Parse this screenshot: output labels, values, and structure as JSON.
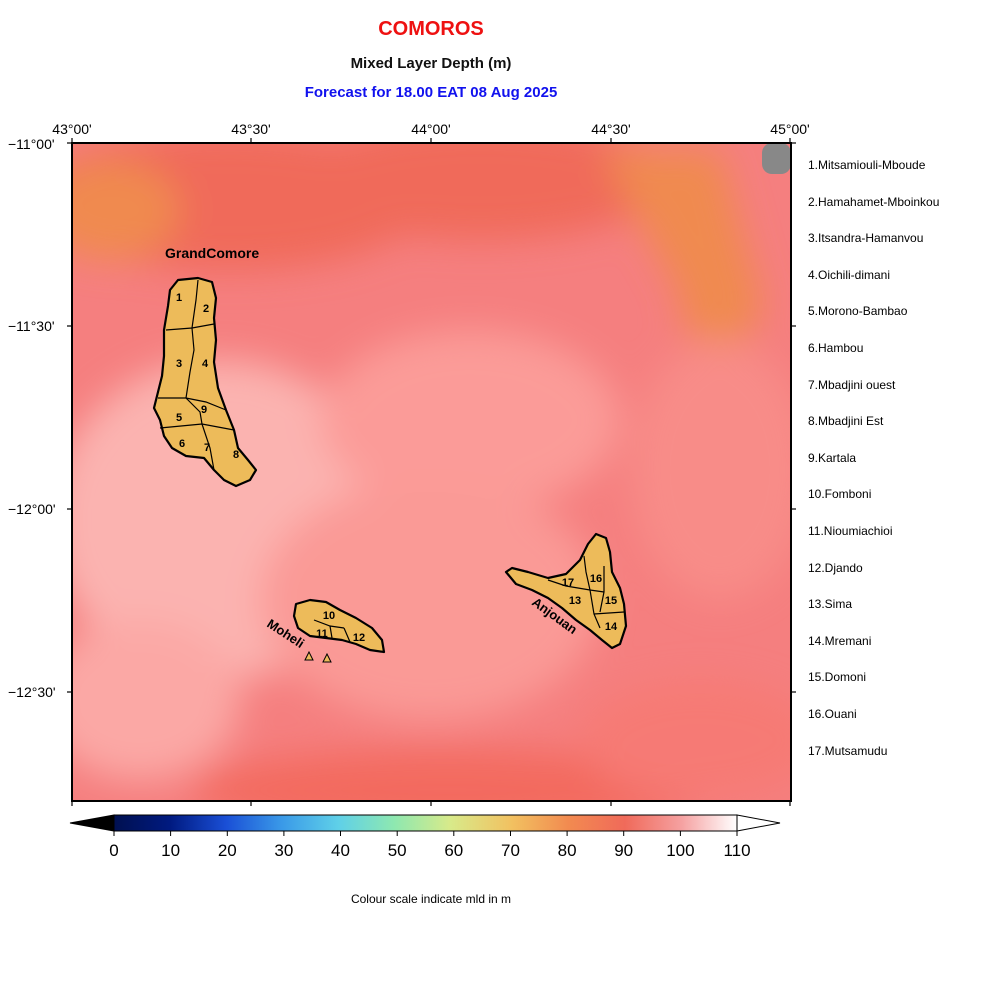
{
  "header": {
    "country": "COMOROS",
    "variable": "Mixed Layer Depth (m)",
    "forecast": "Forecast for  18.00 EAT 08 Aug 2025"
  },
  "axes": {
    "lon_labels": [
      "43°00'",
      "43°30'",
      "44°00'",
      "44°30'",
      "45°00'"
    ],
    "lat_labels": [
      "−11°00'",
      "−11°30'",
      "−12°00'",
      "−12°30'"
    ]
  },
  "islands": {
    "grand_comore": "GrandComore",
    "moheli": "Moheli",
    "anjouan": "Anjouan"
  },
  "region_numbers": [
    "1",
    "2",
    "3",
    "4",
    "5",
    "6",
    "7",
    "8",
    "9",
    "10",
    "11",
    "12",
    "13",
    "14",
    "15",
    "16",
    "17"
  ],
  "regions": [
    "1.Mitsamiouli-Mboude",
    "2.Hamahamet-Mboinkou",
    "3.Itsandra-Hamanvou",
    "4.Oichili-dimani",
    "5.Morono-Bambao",
    "6.Hambou",
    "7.Mbadjini ouest",
    "8.Mbadjini Est",
    "9.Kartala",
    "10.Fomboni",
    "11.Nioumiachioi",
    "12.Djando",
    "13.Sima",
    "14.Mremani",
    "15.Domoni",
    "16.Ouani",
    "17.Mutsamudu"
  ],
  "colorbar": {
    "tick_labels": [
      "0",
      "10",
      "20",
      "30",
      "40",
      "50",
      "60",
      "70",
      "80",
      "90",
      "100",
      "110"
    ],
    "note": "Colour scale indicate mld in m",
    "colors": [
      "#000000",
      "#001a80",
      "#1a4fd6",
      "#3a9ae8",
      "#5fd0e8",
      "#8ee8b0",
      "#d8ea8a",
      "#f2c060",
      "#f28a50",
      "#f06a5a",
      "#f5a0a0",
      "#ffffff"
    ]
  },
  "colors": {
    "land": "#edbb5a",
    "sea_main": "#f57f7f",
    "sea_dark": "#f06a5a",
    "sea_light": "#fbb3b0",
    "sea_orange": "#f08a50",
    "nodata": "#888888"
  }
}
